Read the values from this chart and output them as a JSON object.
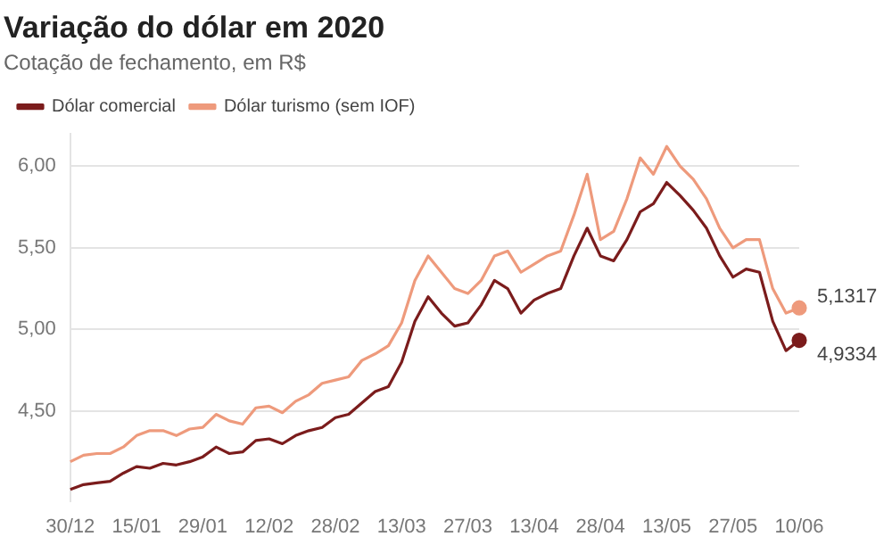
{
  "chart_data": {
    "type": "line",
    "title": "Variação do dólar em 2020",
    "subtitle": "Cotação de fechamento, em R$",
    "categories": [
      "30/12",
      null,
      null,
      null,
      null,
      "15/01",
      null,
      null,
      null,
      null,
      "29/01",
      null,
      null,
      null,
      null,
      "12/02",
      null,
      null,
      null,
      null,
      "28/02",
      null,
      null,
      null,
      null,
      "13/03",
      null,
      null,
      null,
      null,
      "27/03",
      null,
      null,
      null,
      null,
      "13/04",
      null,
      null,
      null,
      null,
      "28/04",
      null,
      null,
      null,
      null,
      "13/05",
      null,
      null,
      null,
      null,
      "27/05",
      null,
      null,
      null,
      null,
      "10/06"
    ],
    "series": [
      {
        "name": "Dólar comercial",
        "color": "#7b1c1c",
        "values": [
          4.02,
          4.05,
          4.06,
          4.07,
          4.12,
          4.16,
          4.15,
          4.18,
          4.17,
          4.19,
          4.22,
          4.28,
          4.24,
          4.25,
          4.32,
          4.33,
          4.3,
          4.35,
          4.38,
          4.4,
          4.46,
          4.48,
          4.55,
          4.62,
          4.65,
          4.8,
          5.05,
          5.2,
          5.1,
          5.02,
          5.04,
          5.15,
          5.3,
          5.25,
          5.1,
          5.18,
          5.22,
          5.25,
          5.45,
          5.62,
          5.45,
          5.42,
          5.55,
          5.72,
          5.77,
          5.9,
          5.82,
          5.73,
          5.62,
          5.45,
          5.32,
          5.37,
          5.35,
          5.05,
          4.87,
          4.9334
        ],
        "value_labels": [
          null,
          null,
          null,
          null,
          null,
          null,
          null,
          null,
          null,
          null,
          null,
          null,
          null,
          null,
          null,
          null,
          null,
          null,
          null,
          null,
          null,
          null,
          null,
          null,
          null,
          null,
          null,
          null,
          null,
          null,
          null,
          null,
          null,
          null,
          null,
          null,
          null,
          null,
          null,
          null,
          null,
          null,
          null,
          null,
          null,
          null,
          null,
          null,
          null,
          null,
          null,
          null,
          null,
          null,
          null,
          "4,9334"
        ]
      },
      {
        "name": "Dólar turismo (sem IOF)",
        "color": "#ee9a7c",
        "values": [
          4.19,
          4.23,
          4.24,
          4.24,
          4.28,
          4.35,
          4.38,
          4.38,
          4.35,
          4.39,
          4.4,
          4.48,
          4.44,
          4.42,
          4.52,
          4.53,
          4.49,
          4.56,
          4.6,
          4.67,
          4.69,
          4.71,
          4.81,
          4.85,
          4.9,
          5.04,
          5.3,
          5.45,
          5.35,
          5.25,
          5.22,
          5.3,
          5.45,
          5.48,
          5.35,
          5.4,
          5.45,
          5.48,
          5.7,
          5.95,
          5.55,
          5.6,
          5.8,
          6.05,
          5.95,
          6.12,
          6.0,
          5.92,
          5.8,
          5.62,
          5.5,
          5.55,
          5.55,
          5.25,
          5.1,
          5.1317
        ],
        "value_labels": [
          null,
          null,
          null,
          null,
          null,
          null,
          null,
          null,
          null,
          null,
          null,
          null,
          null,
          null,
          null,
          null,
          null,
          null,
          null,
          null,
          null,
          null,
          null,
          null,
          null,
          null,
          null,
          null,
          null,
          null,
          null,
          null,
          null,
          null,
          null,
          null,
          null,
          null,
          null,
          null,
          null,
          null,
          null,
          null,
          null,
          null,
          null,
          null,
          null,
          null,
          null,
          null,
          null,
          null,
          null,
          "5,1317"
        ]
      }
    ],
    "ylim": [
      3.95,
      6.2
    ],
    "yticks": [
      {
        "value": 4.5,
        "label": "4,50"
      },
      {
        "value": 5,
        "label": "5,00"
      },
      {
        "value": 5.5,
        "label": "5,50"
      },
      {
        "value": 6,
        "label": "6,00"
      }
    ],
    "grid": "y",
    "legend": "top left"
  }
}
